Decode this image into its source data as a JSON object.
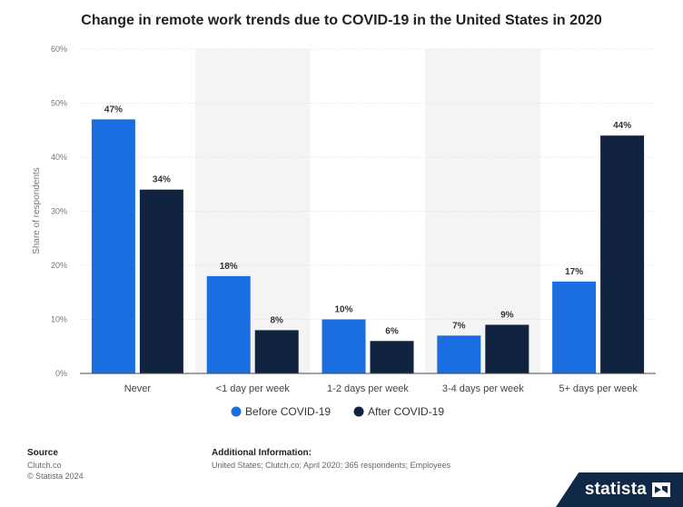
{
  "chart_data": {
    "type": "bar",
    "title": "Change in remote work trends due to COVID-19 in the United States in 2020",
    "xlabel": "",
    "ylabel": "Share of respondents",
    "ylim": [
      0,
      60
    ],
    "yticks": [
      "0%",
      "10%",
      "20%",
      "30%",
      "40%",
      "50%",
      "60%"
    ],
    "categories": [
      "Never",
      "<1 day per week",
      "1-2 days per week",
      "3-4 days per week",
      "5+ days per week"
    ],
    "series": [
      {
        "name": "Before COVID-19",
        "values": [
          47,
          18,
          10,
          7,
          17
        ],
        "labels": [
          "47%",
          "18%",
          "10%",
          "7%",
          "17%"
        ],
        "color": "#1a6ee0"
      },
      {
        "name": "After COVID-19",
        "values": [
          34,
          8,
          6,
          9,
          44
        ],
        "labels": [
          "34%",
          "8%",
          "6%",
          "9%",
          "44%"
        ],
        "color": "#10243f"
      }
    ],
    "legend": "bottom",
    "grid": true
  },
  "footer": {
    "source_header": "Source",
    "source_lines": [
      "Clutch.co",
      "© Statista 2024"
    ],
    "info_header": "Additional Information:",
    "info_text": "United States; Clutch.co; April 2020; 365 respondents; Employees"
  },
  "brand": {
    "name": "statista"
  },
  "colors": {
    "grid": "#dddddd",
    "band": "#f4f4f4",
    "axis": "#444444"
  }
}
